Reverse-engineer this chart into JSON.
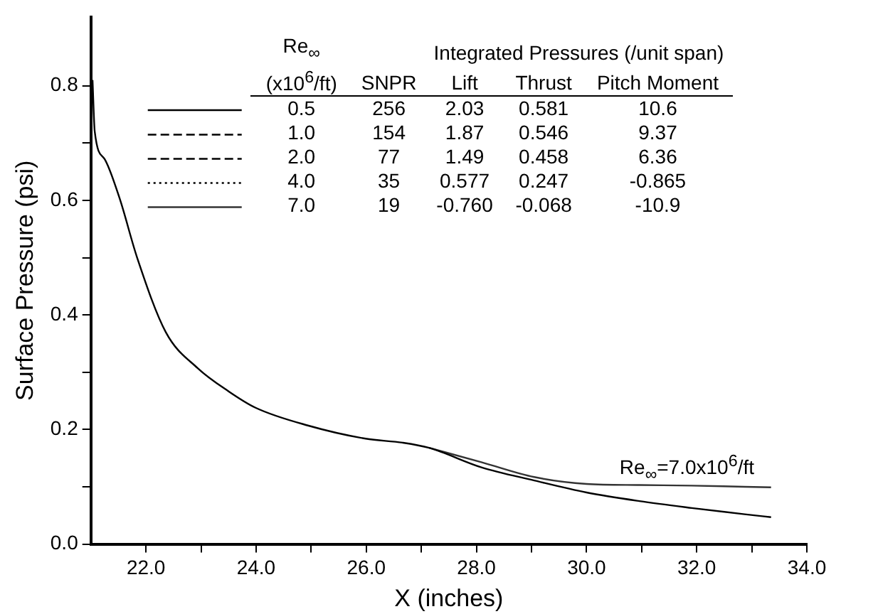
{
  "chart_data": {
    "type": "line",
    "xlabel": "X (inches)",
    "ylabel": "Surface Pressure (psi)",
    "legend_title": "Re$_{∞}$ (x10$^{6}$/ft)",
    "legend": "top left",
    "grid": false,
    "marker": "none",
    "xlim": [
      21,
      34
    ],
    "ylim": [
      0,
      0.92
    ],
    "xticks": [
      {
        "value": 22,
        "label": "22.0"
      },
      {
        "value": 23,
        "label": null
      },
      {
        "value": 24,
        "label": "24.0"
      },
      {
        "value": 25,
        "label": null
      },
      {
        "value": 26,
        "label": "26.0"
      },
      {
        "value": 27,
        "label": null
      },
      {
        "value": 28,
        "label": "28.0"
      },
      {
        "value": 29,
        "label": null
      },
      {
        "value": 30,
        "label": "30.0"
      },
      {
        "value": 31,
        "label": null
      },
      {
        "value": 32,
        "label": "32.0"
      },
      {
        "value": 33,
        "label": null
      },
      {
        "value": 34,
        "label": "34.0"
      }
    ],
    "yticks": [
      {
        "value": 0,
        "label": "0.0"
      },
      {
        "value": 0.1,
        "label": null
      },
      {
        "value": 0.2,
        "label": "0.2"
      },
      {
        "value": 0.3,
        "label": null
      },
      {
        "value": 0.4,
        "label": "0.4"
      },
      {
        "value": 0.5,
        "label": null
      },
      {
        "value": 0.6,
        "label": "0.6"
      },
      {
        "value": 0.7,
        "label": null
      },
      {
        "value": 0.8,
        "label": "0.8"
      }
    ],
    "x": [
      21.03,
      21.07,
      21.25,
      21.52,
      21.84,
      22.36,
      22.94,
      23.51,
      23.99,
      24.94,
      25.99,
      26.66,
      27.14,
      28.09,
      29.05,
      30.0,
      30.96,
      31.91,
      32.87,
      33.35
    ],
    "series": [
      {
        "name": "0.5",
        "color": "#000000",
        "line_style": "solid",
        "values": [
          0.81,
          0.72,
          0.672,
          0.604,
          0.5,
          0.37,
          0.307,
          0.266,
          0.238,
          0.207,
          0.184,
          0.177,
          0.168,
          0.134,
          0.111,
          0.09,
          0.075,
          0.063,
          0.052,
          0.047
        ]
      },
      {
        "name": "1.0",
        "color": "#000000",
        "line_style": "dashed",
        "values": [
          null,
          null,
          null,
          null,
          null,
          null,
          null,
          null,
          null,
          null,
          null,
          null,
          null,
          null,
          null,
          null,
          null,
          null,
          null,
          null
        ]
      },
      {
        "name": "2.0",
        "color": "#000000",
        "line_style": "dashed",
        "values": [
          null,
          null,
          null,
          null,
          null,
          null,
          null,
          null,
          null,
          null,
          null,
          null,
          null,
          null,
          null,
          null,
          null,
          null,
          null,
          null
        ]
      },
      {
        "name": "4.0",
        "color": "#000000",
        "line_style": "dotted",
        "values": [
          null,
          null,
          null,
          null,
          null,
          null,
          null,
          null,
          null,
          null,
          null,
          null,
          null,
          null,
          null,
          null,
          null,
          null,
          null,
          null
        ]
      },
      {
        "name": "7.0",
        "color": "#333333",
        "line_style": "solid",
        "values": [
          null,
          null,
          null,
          null,
          null,
          null,
          null,
          null,
          null,
          null,
          null,
          null,
          0.168,
          0.143,
          0.117,
          0.105,
          0.103,
          0.102,
          0.1,
          0.099
        ]
      }
    ],
    "annotations": [
      "Integrated Pressures (/unit span)",
      "SNPR",
      "Lift",
      "Thrust",
      "Pitch Moment",
      "256",
      "2.03",
      "0.581",
      "10.6",
      "154",
      "1.87",
      "0.546",
      "9.37",
      "77",
      "1.49",
      "0.458",
      "6.36",
      "35",
      "0.577",
      "0.247",
      "-0.865",
      "19",
      "-0.760",
      "-0.068",
      "-10.9",
      {
        "text": "Re$_{∞}$=7.0x10$^{6}$/ft",
        "x": 30.6,
        "y": 0.105
      }
    ]
  }
}
